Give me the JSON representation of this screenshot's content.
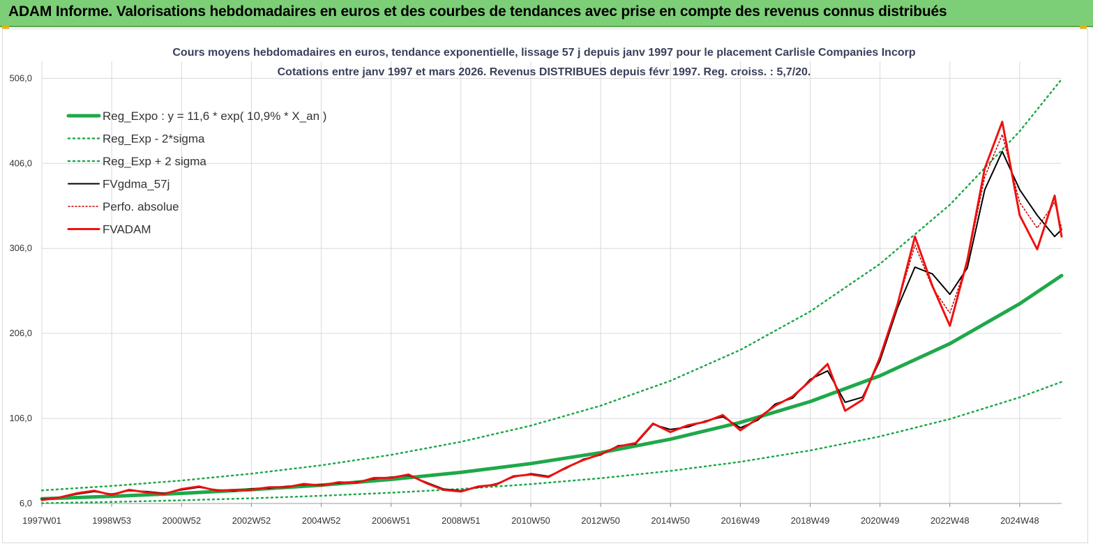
{
  "banner": {
    "title": "ADAM Informe. Valorisations hebdomadaires en euros et des courbes de tendances avec prise en compte des revenus connus distribués"
  },
  "colors": {
    "banner_bg": "#7ccf76",
    "trend": "#1fa84a",
    "band": "#1fa84a",
    "smoothed": "#000000",
    "perfo": "#c00000",
    "fvadam": "#ee1111",
    "grid": "#d9d9d9"
  },
  "chart_data": {
    "type": "line",
    "title": "Cours moyens hebdomadaires en euros, tendance exponentielle, lissage 57 j depuis janv 1997  pour le placement Carlisle Companies Incorp",
    "subtitle": "Cotations entre janv 1997 et mars 2026. Revenus DISTRIBUES depuis févr 1997. Reg. croiss. : 5,7/20.",
    "xlabel": "",
    "ylabel": "",
    "x_range": [
      1997.0,
      2026.2
    ],
    "ylim": [
      6,
      526
    ],
    "grid": true,
    "legend_position": "top-left",
    "y_ticks": [
      "6,0",
      "106,0",
      "206,0",
      "306,0",
      "406,0",
      "506,0"
    ],
    "x_ticks": [
      "1997W01",
      "1998W53",
      "2000W52",
      "2002W52",
      "2004W52",
      "2006W51",
      "2008W51",
      "2010W50",
      "2012W50",
      "2014W50",
      "2016W49",
      "2018W49",
      "2020W49",
      "2022W48",
      "2024W48"
    ],
    "x_tick_years": [
      1997.0,
      1999.0,
      2001.0,
      2003.0,
      2005.0,
      2007.0,
      2009.0,
      2011.0,
      2013.0,
      2015.0,
      2017.0,
      2019.0,
      2021.0,
      2023.0,
      2025.0
    ],
    "series": [
      {
        "name": "Reg_Expo : y = 11,6 * exp( 10,9% *  X_an )",
        "style": "trend",
        "x": [
          1997.0,
          1999.0,
          2001.0,
          2003.0,
          2005.0,
          2007.0,
          2009.0,
          2011.0,
          2013.0,
          2015.0,
          2017.0,
          2019.0,
          2021.0,
          2023.0,
          2025.0,
          2026.2
        ],
        "y": [
          11.6,
          14.4,
          17.9,
          22.2,
          27.6,
          34.3,
          42.6,
          52.9,
          65.7,
          81.6,
          101.3,
          125.8,
          156.2,
          194.0,
          240.9,
          274.0
        ]
      },
      {
        "name": "Reg_Exp - 2*sigma",
        "style": "band",
        "x": [
          1997.0,
          1999.0,
          2001.0,
          2003.0,
          2005.0,
          2007.0,
          2009.0,
          2011.0,
          2013.0,
          2015.0,
          2017.0,
          2019.0,
          2021.0,
          2023.0,
          2025.0,
          2026.2
        ],
        "y": [
          6.3,
          7.8,
          9.7,
          12.1,
          15.0,
          18.6,
          23.1,
          28.7,
          35.7,
          44.3,
          55.0,
          68.3,
          84.8,
          105.3,
          130.8,
          149.0
        ]
      },
      {
        "name": "Reg_Exp + 2 sigma",
        "style": "band",
        "x": [
          1997.0,
          1999.0,
          2001.0,
          2003.0,
          2005.0,
          2007.0,
          2009.0,
          2011.0,
          2013.0,
          2015.0,
          2017.0,
          2019.0,
          2021.0,
          2023.0,
          2025.0,
          2026.2
        ],
        "y": [
          21.4,
          26.6,
          33.0,
          41.0,
          50.9,
          63.2,
          78.5,
          97.5,
          121.0,
          150.3,
          186.6,
          231.8,
          287.8,
          357.4,
          443.8,
          505.0
        ]
      },
      {
        "name": "FVgdma_57j",
        "style": "smoothed",
        "x": [
          1997.0,
          1997.5,
          1998.0,
          1998.5,
          1999.0,
          1999.5,
          2000.0,
          2000.5,
          2001.0,
          2001.5,
          2002.0,
          2002.5,
          2003.0,
          2003.5,
          2004.0,
          2004.5,
          2005.0,
          2005.5,
          2006.0,
          2006.5,
          2007.0,
          2007.5,
          2008.0,
          2008.5,
          2009.0,
          2009.5,
          2010.0,
          2010.5,
          2011.0,
          2011.5,
          2012.0,
          2012.5,
          2013.0,
          2013.5,
          2014.0,
          2014.5,
          2015.0,
          2015.5,
          2016.0,
          2016.5,
          2017.0,
          2017.5,
          2018.0,
          2018.5,
          2019.0,
          2019.5,
          2020.0,
          2020.5,
          2021.0,
          2021.5,
          2022.0,
          2022.5,
          2023.0,
          2023.5,
          2024.0,
          2024.5,
          2025.0,
          2025.5,
          2026.0,
          2026.2
        ],
        "y": [
          11,
          13,
          17,
          20,
          17,
          21,
          20,
          18,
          22,
          25,
          22,
          21,
          23,
          24,
          26,
          28,
          28,
          30,
          31,
          35,
          37,
          39,
          31,
          23,
          21,
          25,
          29,
          37,
          41,
          38,
          47,
          58,
          63,
          74,
          76,
          99,
          93,
          96,
          103,
          108,
          95,
          104,
          123,
          130,
          152,
          162,
          125,
          131,
          174,
          236,
          284,
          276,
          252,
          283,
          375,
          420,
          375,
          345,
          320,
          328
        ]
      },
      {
        "name": "Perfo. absolue",
        "style": "perfo",
        "x": [
          1997.0,
          1997.5,
          1998.0,
          1998.5,
          1999.0,
          1999.5,
          2000.0,
          2000.5,
          2001.0,
          2001.5,
          2002.0,
          2002.5,
          2003.0,
          2003.5,
          2004.0,
          2004.5,
          2005.0,
          2005.5,
          2006.0,
          2006.5,
          2007.0,
          2007.5,
          2008.0,
          2008.5,
          2009.0,
          2009.5,
          2010.0,
          2010.5,
          2011.0,
          2011.5,
          2012.0,
          2012.5,
          2013.0,
          2013.5,
          2014.0,
          2014.5,
          2015.0,
          2015.5,
          2016.0,
          2016.5,
          2017.0,
          2017.5,
          2018.0,
          2018.5,
          2019.0,
          2019.5,
          2020.0,
          2020.5,
          2021.0,
          2021.5,
          2022.0,
          2022.5,
          2023.0,
          2023.5,
          2024.0,
          2024.5,
          2025.0,
          2025.5,
          2026.0,
          2026.2
        ],
        "y": [
          10,
          13,
          18,
          21,
          16,
          22,
          19,
          17,
          23,
          26,
          21,
          22,
          22,
          25,
          25,
          29,
          27,
          31,
          30,
          36,
          36,
          40,
          30,
          22,
          20,
          26,
          28,
          38,
          40,
          37,
          48,
          57,
          64,
          73,
          77,
          100,
          90,
          98,
          102,
          110,
          92,
          106,
          121,
          132,
          150,
          170,
          115,
          128,
          178,
          240,
          310,
          260,
          230,
          290,
          390,
          440,
          360,
          330,
          360,
          330
        ]
      },
      {
        "name": "FVADAM",
        "style": "fvadam",
        "x": [
          1997.0,
          1997.5,
          1998.0,
          1998.5,
          1999.0,
          1999.5,
          2000.0,
          2000.5,
          2001.0,
          2001.5,
          2002.0,
          2002.5,
          2003.0,
          2003.5,
          2004.0,
          2004.5,
          2005.0,
          2005.5,
          2006.0,
          2006.5,
          2007.0,
          2007.5,
          2008.0,
          2008.5,
          2009.0,
          2009.5,
          2010.0,
          2010.5,
          2011.0,
          2011.5,
          2012.0,
          2012.5,
          2013.0,
          2013.5,
          2014.0,
          2014.5,
          2015.0,
          2015.5,
          2016.0,
          2016.5,
          2017.0,
          2017.5,
          2018.0,
          2018.5,
          2019.0,
          2019.5,
          2020.0,
          2020.5,
          2021.0,
          2021.5,
          2022.0,
          2022.5,
          2023.0,
          2023.5,
          2024.0,
          2024.5,
          2025.0,
          2025.5,
          2026.0,
          2026.2
        ],
        "y": [
          10,
          13,
          18,
          21,
          16,
          22,
          19,
          17,
          23,
          26,
          21,
          22,
          22,
          25,
          25,
          29,
          27,
          31,
          30,
          36,
          36,
          40,
          30,
          22,
          20,
          26,
          28,
          38,
          40,
          37,
          48,
          57,
          64,
          73,
          77,
          100,
          90,
          98,
          102,
          110,
          92,
          106,
          121,
          132,
          150,
          170,
          115,
          128,
          178,
          240,
          320,
          262,
          215,
          292,
          400,
          455,
          345,
          305,
          368,
          320
        ]
      }
    ]
  }
}
